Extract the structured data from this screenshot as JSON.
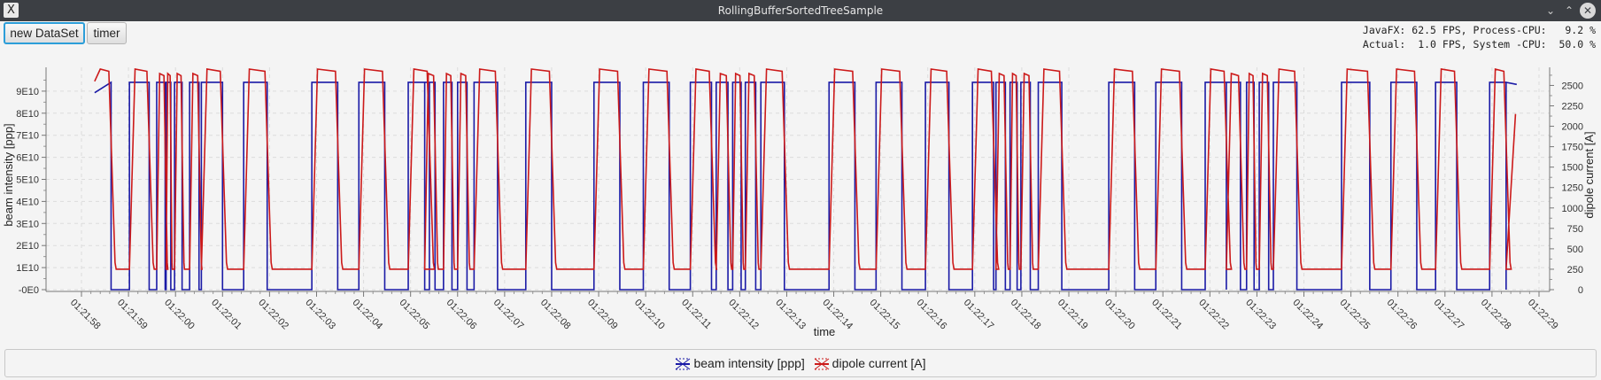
{
  "window": {
    "title": "RollingBufferSortedTreeSample",
    "app_icon_glyph": "X",
    "controls": [
      "minimize-icon",
      "maximize-icon",
      "close-icon"
    ]
  },
  "toolbar": {
    "new_dataset_label": "new DataSet",
    "timer_label": "timer"
  },
  "stats": {
    "line1": "JavaFX: 62.5 FPS, Process-CPU:   9.2 %",
    "line2": "Actual:  1.0 FPS, System -CPU:  50.0 %"
  },
  "legend": {
    "items": [
      {
        "label": "beam intensity [ppp]",
        "color": "#1a1aa6"
      },
      {
        "label": "dipole current [A]",
        "color": "#cc1a1a"
      }
    ]
  },
  "chart_data": {
    "type": "line",
    "xlabel": "time",
    "ylabel_left": "beam intensity [ppp]",
    "ylabel_right": "dipole current [A]",
    "x_tick_labels": [
      "01:21:58",
      "01:21:59",
      "01:22:00",
      "01:22:01",
      "01:22:02",
      "01:22:03",
      "01:22:04",
      "01:22:05",
      "01:22:06",
      "01:22:07",
      "01:22:08",
      "01:22:09",
      "01:22:10",
      "01:22:11",
      "01:22:12",
      "01:22:13",
      "01:22:14",
      "01:22:15",
      "01:22:16",
      "01:22:17",
      "01:22:18",
      "01:22:19",
      "01:22:20",
      "01:22:21",
      "01:22:22",
      "01:22:23",
      "01:22:24",
      "01:22:25",
      "01:22:26",
      "01:22:27",
      "01:22:28",
      "01:22:29"
    ],
    "x_range_seconds": [
      0,
      31
    ],
    "y_left_tick_labels": [
      "-0E0",
      "1E10",
      "2E10",
      "3E10",
      "4E10",
      "5E10",
      "6E10",
      "7E10",
      "8E10",
      "9E10"
    ],
    "y_left_range": [
      0,
      100000000000.0
    ],
    "y_right_tick_labels": [
      "0",
      "250",
      "500",
      "750",
      "1000",
      "1250",
      "1500",
      "1750",
      "2000",
      "2250",
      "2500"
    ],
    "y_right_range": [
      0,
      2700
    ],
    "grid": true,
    "legend_position": "bottom",
    "data_start_seconds": 0.28,
    "data_end_seconds": 30.3,
    "dipole_baseline_A": 250,
    "dipole_flat_top_A": 2700,
    "beam_on_ppp": 94000000000.0,
    "cycles": [
      {
        "start": 0.28,
        "len": 0.35
      },
      {
        "start": 1.02,
        "len": 0.42
      },
      {
        "start": 1.6,
        "len": 0.18
      },
      {
        "start": 1.8,
        "len": 0.1
      },
      {
        "start": 1.98,
        "len": 0.16
      },
      {
        "start": 2.3,
        "len": 0.2
      },
      {
        "start": 2.55,
        "len": 0.45
      },
      {
        "start": 3.45,
        "len": 0.5
      },
      {
        "start": 4.9,
        "len": 0.55
      },
      {
        "start": 5.9,
        "len": 0.55
      },
      {
        "start": 6.95,
        "len": 0.45
      },
      {
        "start": 7.3,
        "len": 0.22
      },
      {
        "start": 7.7,
        "len": 0.18
      },
      {
        "start": 8.0,
        "len": 0.2
      },
      {
        "start": 8.35,
        "len": 0.5
      },
      {
        "start": 9.45,
        "len": 0.55
      },
      {
        "start": 10.9,
        "len": 0.55
      },
      {
        "start": 11.95,
        "len": 0.55
      },
      {
        "start": 12.95,
        "len": 0.45
      },
      {
        "start": 13.5,
        "len": 0.25
      },
      {
        "start": 13.85,
        "len": 0.18
      },
      {
        "start": 14.12,
        "len": 0.22
      },
      {
        "start": 14.45,
        "len": 0.5
      },
      {
        "start": 15.9,
        "len": 0.55
      },
      {
        "start": 16.9,
        "len": 0.55
      },
      {
        "start": 17.95,
        "len": 0.5
      },
      {
        "start": 18.95,
        "len": 0.45
      },
      {
        "start": 19.45,
        "len": 0.2
      },
      {
        "start": 19.75,
        "len": 0.15
      },
      {
        "start": 19.98,
        "len": 0.2
      },
      {
        "start": 20.35,
        "len": 0.5
      },
      {
        "start": 21.85,
        "len": 0.55
      },
      {
        "start": 22.85,
        "len": 0.55
      },
      {
        "start": 23.9,
        "len": 0.45
      },
      {
        "start": 24.35,
        "len": 0.3
      },
      {
        "start": 24.78,
        "len": 0.16
      },
      {
        "start": 25.05,
        "len": 0.2
      },
      {
        "start": 25.35,
        "len": 0.5
      },
      {
        "start": 26.8,
        "len": 0.6
      },
      {
        "start": 27.85,
        "len": 0.55
      },
      {
        "start": 28.8,
        "len": 0.45
      },
      {
        "start": 29.95,
        "len": 0.35
      }
    ]
  }
}
